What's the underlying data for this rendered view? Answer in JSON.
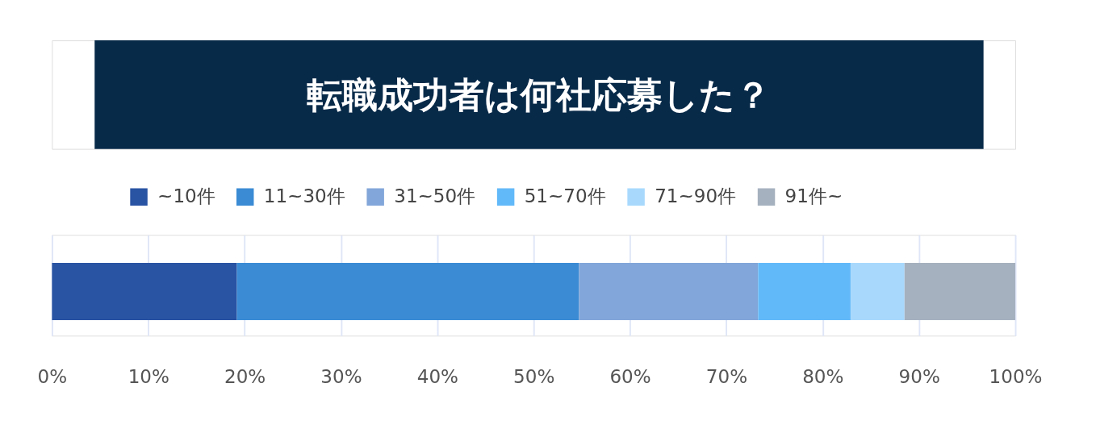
{
  "chart_data": {
    "type": "bar",
    "title": "転職成功者は何社応募した？",
    "orientation": "horizontal",
    "stacked": true,
    "categories": [
      null
    ],
    "series": [
      {
        "name": "~10件",
        "color": "#2953a3",
        "values": [
          19.2
        ]
      },
      {
        "name": "11~30件",
        "color": "#3a8bd4",
        "values": [
          35.5
        ]
      },
      {
        "name": "31~50件",
        "color": "#82a6d9",
        "values": [
          18.6
        ]
      },
      {
        "name": "51~70件",
        "color": "#62b9f9",
        "values": [
          9.6
        ]
      },
      {
        "name": "71~90件",
        "color": "#a8d9fd",
        "values": [
          5.6
        ]
      },
      {
        "name": "91件~",
        "color": "#a6b1bf",
        "values": [
          11.5
        ]
      }
    ],
    "xlim": [
      0,
      100
    ],
    "xticks": [
      {
        "value": 0,
        "label": "0%"
      },
      {
        "value": 10,
        "label": "10%"
      },
      {
        "value": 20,
        "label": "20%"
      },
      {
        "value": 30,
        "label": "30%"
      },
      {
        "value": 40,
        "label": "40%"
      },
      {
        "value": 50,
        "label": "50%"
      },
      {
        "value": 60,
        "label": "60%"
      },
      {
        "value": 70,
        "label": "70%"
      },
      {
        "value": 80,
        "label": "80%"
      },
      {
        "value": 90,
        "label": "90%"
      },
      {
        "value": 100,
        "label": "100%"
      }
    ],
    "grid": "x",
    "legend": "top"
  }
}
